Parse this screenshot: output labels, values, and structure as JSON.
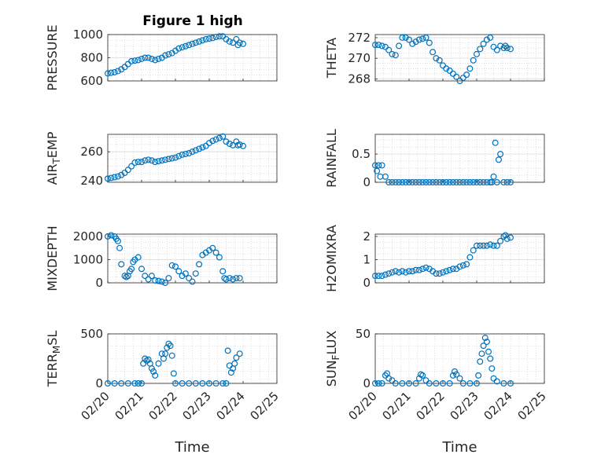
{
  "figure": {
    "title": "Figure 1 high"
  },
  "chart_data": [
    {
      "type": "scatter",
      "ylabel": "PRESSURE",
      "ylim": [
        600,
        1000
      ],
      "yticks": [
        {
          "v": 600,
          "label": "600"
        },
        {
          "v": 800,
          "label": "800"
        },
        {
          "v": 1000,
          "label": "1000"
        }
      ],
      "x": [
        20.0,
        20.1,
        20.2,
        20.3,
        20.4,
        20.5,
        20.6,
        20.7,
        20.8,
        20.9,
        21.0,
        21.1,
        21.2,
        21.3,
        21.4,
        21.5,
        21.6,
        21.7,
        21.8,
        21.9,
        22.0,
        22.1,
        22.2,
        22.3,
        22.4,
        22.5,
        22.6,
        22.7,
        22.8,
        22.9,
        23.0,
        23.1,
        23.2,
        23.3,
        23.4,
        23.5,
        23.6,
        23.7,
        23.8,
        23.85,
        23.9,
        24.0
      ],
      "y": [
        665,
        670,
        675,
        685,
        700,
        720,
        745,
        770,
        775,
        780,
        790,
        800,
        800,
        790,
        780,
        790,
        800,
        820,
        830,
        840,
        860,
        880,
        890,
        900,
        910,
        920,
        930,
        940,
        950,
        960,
        965,
        970,
        980,
        985,
        985,
        960,
        940,
        930,
        960,
        910,
        930,
        920
      ]
    },
    {
      "type": "scatter",
      "ylabel": "THETA",
      "ylim": [
        267.8,
        272.3
      ],
      "yticks": [
        {
          "v": 268,
          "label": "268"
        },
        {
          "v": 270,
          "label": "270"
        },
        {
          "v": 272,
          "label": "272"
        }
      ],
      "x": [
        20.0,
        20.1,
        20.2,
        20.3,
        20.4,
        20.5,
        20.6,
        20.7,
        20.8,
        20.9,
        21.0,
        21.1,
        21.2,
        21.3,
        21.4,
        21.5,
        21.6,
        21.7,
        21.8,
        21.9,
        22.0,
        22.1,
        22.2,
        22.3,
        22.4,
        22.5,
        22.6,
        22.7,
        22.8,
        22.9,
        23.0,
        23.1,
        23.2,
        23.3,
        23.4,
        23.5,
        23.6,
        23.7,
        23.8,
        23.85,
        23.9,
        24.0
      ],
      "y": [
        271.3,
        271.3,
        271.2,
        271.1,
        270.8,
        270.4,
        270.3,
        271.2,
        272.0,
        272.0,
        271.8,
        271.4,
        271.6,
        271.8,
        271.9,
        272.0,
        271.5,
        270.6,
        270.0,
        269.8,
        269.3,
        269.0,
        268.8,
        268.5,
        268.2,
        267.8,
        268.1,
        268.4,
        269.0,
        269.8,
        270.4,
        270.9,
        271.4,
        271.8,
        272.0,
        271.1,
        270.8,
        271.2,
        271.0,
        271.2,
        271.0,
        270.9
      ]
    },
    {
      "type": "scatter",
      "ylabel": "AIR_TEMP",
      "ylim": [
        239,
        272
      ],
      "yticks": [
        {
          "v": 240,
          "label": "240"
        },
        {
          "v": 260,
          "label": "260"
        }
      ],
      "x": [
        20.0,
        20.1,
        20.2,
        20.3,
        20.4,
        20.5,
        20.6,
        20.7,
        20.8,
        20.9,
        21.0,
        21.1,
        21.2,
        21.3,
        21.4,
        21.5,
        21.6,
        21.7,
        21.8,
        21.9,
        22.0,
        22.1,
        22.2,
        22.3,
        22.4,
        22.5,
        22.6,
        22.7,
        22.8,
        22.9,
        23.0,
        23.1,
        23.2,
        23.3,
        23.4,
        23.5,
        23.6,
        23.7,
        23.8,
        23.85,
        23.9,
        24.0
      ],
      "y": [
        241.5,
        242,
        242.5,
        243,
        244,
        245.5,
        247.5,
        250,
        252.5,
        253,
        253,
        254,
        254.5,
        254,
        253,
        253.5,
        254,
        254.5,
        255,
        255.5,
        256,
        257,
        258,
        258.5,
        259,
        260,
        261,
        262,
        263,
        264,
        266,
        267.5,
        268.5,
        269.5,
        270.5,
        267,
        265.5,
        264.5,
        267,
        264.5,
        265,
        264
      ]
    },
    {
      "type": "scatter",
      "ylabel": "RAINFALL",
      "ylim": [
        0,
        0.85
      ],
      "yticks": [
        {
          "v": 0,
          "label": "0"
        },
        {
          "v": 0.5,
          "label": "0.5"
        }
      ],
      "x": [
        20.0,
        20.05,
        20.1,
        20.15,
        20.2,
        20.3,
        20.4,
        20.5,
        20.6,
        20.7,
        20.8,
        20.9,
        21.0,
        21.1,
        21.2,
        21.3,
        21.4,
        21.5,
        21.6,
        21.7,
        21.8,
        21.9,
        22.0,
        22.1,
        22.2,
        22.3,
        22.4,
        22.5,
        22.6,
        22.7,
        22.8,
        22.9,
        23.0,
        23.1,
        23.2,
        23.3,
        23.4,
        23.45,
        23.5,
        23.55,
        23.6,
        23.65,
        23.7,
        23.8,
        23.9,
        24.0
      ],
      "y": [
        0.3,
        0.2,
        0.3,
        0.1,
        0.3,
        0.1,
        0,
        0,
        0,
        0,
        0,
        0,
        0,
        0,
        0,
        0,
        0,
        0,
        0,
        0,
        0,
        0,
        0,
        0,
        0,
        0,
        0,
        0,
        0,
        0,
        0,
        0,
        0,
        0,
        0,
        0,
        0,
        0,
        0.1,
        0.7,
        0,
        0.4,
        0.5,
        0,
        0,
        0
      ]
    },
    {
      "type": "scatter",
      "ylabel": "MIXDEPTH",
      "ylim": [
        0,
        2100
      ],
      "yticks": [
        {
          "v": 0,
          "label": "0"
        },
        {
          "v": 1000,
          "label": "1000"
        },
        {
          "v": 2000,
          "label": "2000"
        }
      ],
      "x": [
        20.0,
        20.1,
        20.2,
        20.25,
        20.3,
        20.35,
        20.4,
        20.5,
        20.55,
        20.6,
        20.65,
        20.7,
        20.75,
        20.8,
        20.9,
        21.0,
        21.1,
        21.2,
        21.3,
        21.4,
        21.5,
        21.6,
        21.7,
        21.8,
        21.9,
        22.0,
        22.1,
        22.2,
        22.3,
        22.4,
        22.5,
        22.6,
        22.7,
        22.8,
        22.9,
        23.0,
        23.1,
        23.2,
        23.3,
        23.4,
        23.45,
        23.5,
        23.6,
        23.7,
        23.8,
        23.9
      ],
      "y": [
        2000,
        2050,
        2000,
        1900,
        1800,
        1500,
        800,
        300,
        250,
        300,
        500,
        600,
        900,
        1000,
        1100,
        600,
        300,
        150,
        300,
        100,
        80,
        50,
        0,
        200,
        750,
        700,
        500,
        300,
        400,
        200,
        50,
        400,
        800,
        1200,
        1300,
        1400,
        1500,
        1300,
        1100,
        500,
        200,
        150,
        200,
        150,
        200,
        200
      ]
    },
    {
      "type": "scatter",
      "ylabel": "H2OMIXRA",
      "ylim": [
        0,
        2.1
      ],
      "yticks": [
        {
          "v": 0,
          "label": "0"
        },
        {
          "v": 1,
          "label": "1"
        },
        {
          "v": 2,
          "label": "2"
        }
      ],
      "x": [
        20.0,
        20.1,
        20.2,
        20.3,
        20.4,
        20.5,
        20.6,
        20.7,
        20.8,
        20.9,
        21.0,
        21.1,
        21.2,
        21.3,
        21.4,
        21.5,
        21.6,
        21.7,
        21.8,
        21.9,
        22.0,
        22.1,
        22.2,
        22.3,
        22.4,
        22.5,
        22.6,
        22.7,
        22.8,
        22.9,
        23.0,
        23.1,
        23.2,
        23.3,
        23.4,
        23.5,
        23.6,
        23.7,
        23.8,
        23.85,
        23.9,
        24.0
      ],
      "y": [
        0.3,
        0.3,
        0.3,
        0.35,
        0.4,
        0.45,
        0.5,
        0.45,
        0.5,
        0.45,
        0.5,
        0.5,
        0.55,
        0.55,
        0.6,
        0.65,
        0.6,
        0.5,
        0.4,
        0.4,
        0.45,
        0.5,
        0.55,
        0.6,
        0.6,
        0.7,
        0.75,
        0.8,
        1.1,
        1.4,
        1.6,
        1.6,
        1.6,
        1.6,
        1.65,
        1.6,
        1.6,
        1.8,
        2.0,
        2.05,
        1.9,
        1.95
      ]
    },
    {
      "type": "scatter",
      "ylabel": "TERR_MSL",
      "ylim": [
        0,
        500
      ],
      "yticks": [
        {
          "v": 0,
          "label": "0"
        },
        {
          "v": 500,
          "label": "500"
        }
      ],
      "x": [
        20.0,
        20.2,
        20.4,
        20.6,
        20.8,
        20.9,
        21.0,
        21.05,
        21.1,
        21.15,
        21.2,
        21.25,
        21.3,
        21.35,
        21.4,
        21.5,
        21.6,
        21.65,
        21.7,
        21.75,
        21.8,
        21.85,
        21.9,
        21.95,
        22.0,
        22.2,
        22.4,
        22.6,
        22.8,
        23.0,
        23.2,
        23.4,
        23.5,
        23.55,
        23.6,
        23.65,
        23.7,
        23.75,
        23.8,
        23.9
      ],
      "y": [
        0,
        0,
        0,
        0,
        0,
        0,
        0,
        200,
        250,
        230,
        240,
        200,
        150,
        120,
        80,
        200,
        300,
        250,
        300,
        360,
        400,
        380,
        280,
        100,
        0,
        0,
        0,
        0,
        0,
        0,
        0,
        0,
        0,
        330,
        180,
        110,
        150,
        200,
        260,
        300
      ]
    },
    {
      "type": "scatter",
      "ylabel": "SUN_FLUX",
      "ylim": [
        0,
        50
      ],
      "yticks": [
        {
          "v": 0,
          "label": "0"
        },
        {
          "v": 50,
          "label": "50"
        }
      ],
      "x": [
        20.0,
        20.1,
        20.2,
        20.3,
        20.35,
        20.4,
        20.5,
        20.6,
        20.8,
        21.0,
        21.2,
        21.3,
        21.35,
        21.4,
        21.5,
        21.6,
        21.8,
        22.0,
        22.2,
        22.3,
        22.35,
        22.4,
        22.5,
        22.6,
        22.8,
        23.0,
        23.05,
        23.1,
        23.15,
        23.2,
        23.25,
        23.3,
        23.35,
        23.4,
        23.45,
        23.5,
        23.6,
        23.8,
        24.0
      ],
      "y": [
        0,
        0,
        0,
        8,
        10,
        5,
        3,
        0,
        0,
        0,
        0,
        5,
        9,
        8,
        3,
        0,
        0,
        0,
        0,
        8,
        12,
        9,
        5,
        0,
        0,
        0,
        8,
        22,
        30,
        38,
        46,
        42,
        32,
        25,
        15,
        5,
        2,
        0,
        0
      ]
    }
  ],
  "xaxis": {
    "xlim": [
      20,
      25
    ],
    "ticks": [
      {
        "v": 20,
        "label": "02/20"
      },
      {
        "v": 21,
        "label": "02/21"
      },
      {
        "v": 22,
        "label": "02/22"
      },
      {
        "v": 23,
        "label": "02/23"
      },
      {
        "v": 24,
        "label": "02/24"
      },
      {
        "v": 25,
        "label": "02/25"
      }
    ],
    "label": "Time"
  },
  "colors": {
    "marker": "#0072BD",
    "axis": "#262626",
    "grid": "#c8c8c8"
  }
}
